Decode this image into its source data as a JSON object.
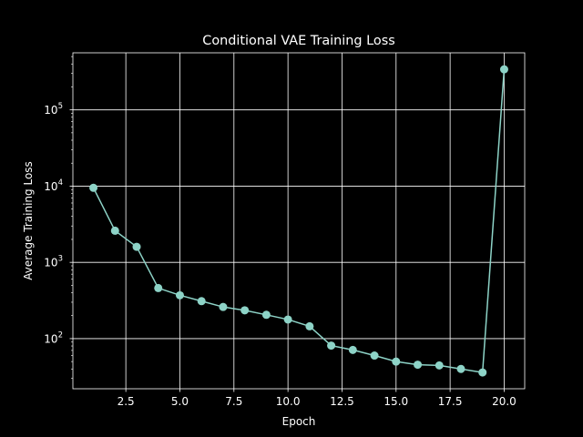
{
  "chart_data": {
    "type": "line",
    "title": "Conditional VAE Training Loss",
    "xlabel": "Epoch",
    "ylabel": "Average Training Loss",
    "yscale": "log",
    "grid": true,
    "xlim": [
      0.05,
      20.95
    ],
    "ylim": [
      22,
      560000
    ],
    "x_ticks": [
      2.5,
      5.0,
      7.5,
      10.0,
      12.5,
      15.0,
      17.5,
      20.0
    ],
    "x_tick_labels": [
      "2.5",
      "5.0",
      "7.5",
      "10.0",
      "12.5",
      "15.0",
      "17.5",
      "20.0"
    ],
    "y_ticks": [
      100,
      1000,
      10000,
      100000
    ],
    "y_tick_bases": [
      "10",
      "10",
      "10",
      "10"
    ],
    "y_tick_exponents": [
      "2",
      "3",
      "4",
      "5"
    ],
    "colors": {
      "background": "#000000",
      "line": "#8dd3c7",
      "grid": "#ffffff",
      "text": "#ffffff"
    },
    "series": [
      {
        "x": [
          1,
          2,
          3,
          4,
          5,
          6,
          7,
          8,
          9,
          10,
          11,
          12,
          13,
          14,
          15,
          16,
          17,
          18,
          19,
          20
        ],
        "values": [
          9500,
          2600,
          1600,
          460,
          370,
          310,
          260,
          235,
          205,
          178,
          145,
          81,
          71,
          60,
          50,
          45.5,
          44.5,
          40,
          36,
          340000
        ]
      }
    ]
  }
}
